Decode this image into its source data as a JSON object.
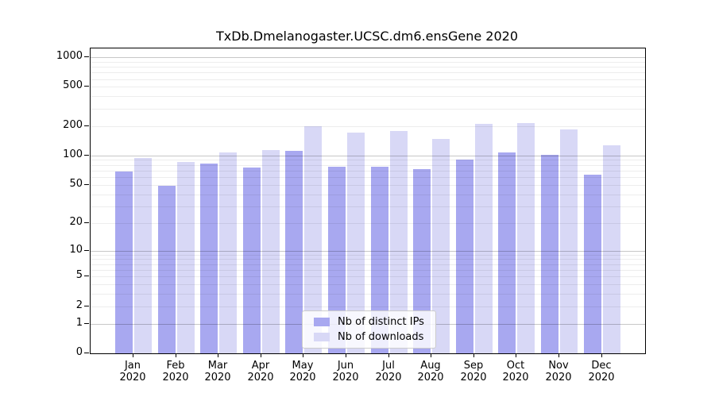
{
  "title": "TxDb.Dmelanogaster.UCSC.dm6.ensGene 2020",
  "legend": {
    "items": [
      {
        "label": "Nb of distinct IPs",
        "color": "#a8a8f0"
      },
      {
        "label": "Nb of downloads",
        "color": "#d8d8f6"
      }
    ]
  },
  "colors": {
    "distinct_ips_bar": "#a8a8f0",
    "downloads_bar": "#d8d8f6",
    "major_gridline": "#c6c6c6",
    "minor_gridline": "#ededed",
    "frame": "#000000"
  },
  "chart_data": {
    "type": "bar",
    "title": "TxDb.Dmelanogaster.UCSC.dm6.ensGene 2020",
    "categories": [
      "Jan",
      "Feb",
      "Mar",
      "Apr",
      "May",
      "Jun",
      "Jul",
      "Aug",
      "Sep",
      "Oct",
      "Nov",
      "Dec"
    ],
    "year_label": "2020",
    "series": [
      {
        "name": "Nb of distinct IPs",
        "color": "#a8a8f0",
        "values": [
          68,
          49,
          83,
          75,
          111,
          76,
          76,
          72,
          90,
          107,
          101,
          63
        ]
      },
      {
        "name": "Nb of downloads",
        "color": "#d8d8f6",
        "values": [
          95,
          86,
          108,
          114,
          198,
          170,
          177,
          148,
          210,
          213,
          185,
          128
        ]
      }
    ],
    "xlabel": "",
    "ylabel": "",
    "ylim": [
      0,
      1000
    ],
    "y_scale": "log10(value+1)",
    "y_ticks": [
      0,
      1,
      2,
      5,
      10,
      20,
      50,
      100,
      200,
      500,
      1000
    ],
    "grid": {
      "major": [
        1,
        10,
        100,
        1000
      ],
      "minor": [
        2,
        3,
        4,
        5,
        6,
        7,
        8,
        9,
        20,
        30,
        40,
        50,
        60,
        70,
        80,
        90,
        200,
        300,
        400,
        500,
        600,
        700,
        800,
        900
      ]
    },
    "legend_position": "bottom-center",
    "grid_on": true
  }
}
